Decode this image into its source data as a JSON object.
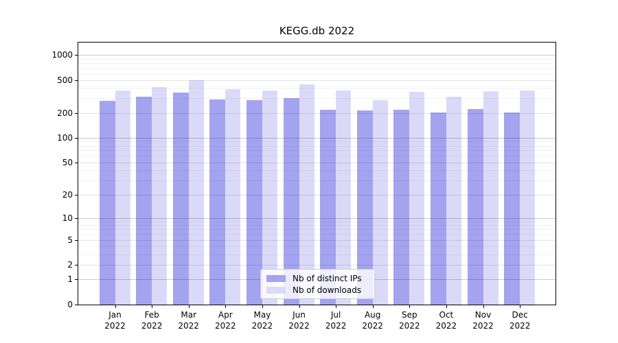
{
  "title": "KEGG.db 2022",
  "colors": {
    "distinct_ips_bar": "#a3a3f0",
    "downloads_bar": "#dadaf8",
    "grid_major": "rgba(0,0,0,0.20)",
    "grid_labeled": "rgba(0,0,0,0.11)",
    "grid_minor": "rgba(0,0,0,0.05)"
  },
  "legend": {
    "items": [
      {
        "label": "Nb of distinct IPs",
        "color_key": "distinct_ips_bar"
      },
      {
        "label": "Nb of downloads",
        "color_key": "downloads_bar"
      }
    ]
  },
  "chart_data": {
    "type": "bar",
    "title": "KEGG.db 2022",
    "categories": [
      "Jan 2022",
      "Feb 2022",
      "Mar 2022",
      "Apr 2022",
      "May 2022",
      "Jun 2022",
      "Jul 2022",
      "Aug 2022",
      "Sep 2022",
      "Oct 2022",
      "Nov 2022",
      "Dec 2022"
    ],
    "series": [
      {
        "name": "Nb of distinct IPs",
        "color": "#a3a3f0",
        "values": [
          281,
          313,
          350,
          288,
          286,
          300,
          220,
          213,
          217,
          203,
          224,
          201
        ]
      },
      {
        "name": "Nb of downloads",
        "color": "#dadaf8",
        "values": [
          372,
          406,
          498,
          390,
          373,
          440,
          372,
          283,
          360,
          315,
          362,
          370
        ]
      }
    ],
    "y_scale": "log10(1+y)",
    "y_ticks": [
      0,
      1,
      2,
      5,
      10,
      20,
      50,
      100,
      200,
      500,
      1000
    ],
    "y_minor_gridlines": [
      3,
      4,
      6,
      7,
      8,
      9,
      30,
      40,
      60,
      70,
      80,
      90,
      300,
      400,
      600,
      700,
      800,
      900
    ],
    "ylim": [
      0,
      1410
    ],
    "xlabel": "",
    "ylabel": "",
    "grid": true,
    "legend_position": "lower center"
  }
}
